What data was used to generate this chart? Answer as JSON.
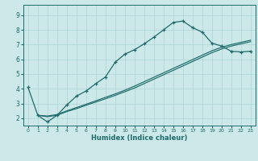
{
  "xlabel": "Humidex (Indice chaleur)",
  "bg_color": "#cce8e8",
  "line_color": "#1e6b6b",
  "grid_color": "#aad4d4",
  "xlim": [
    -0.5,
    23.5
  ],
  "ylim": [
    1.5,
    9.7
  ],
  "xticks": [
    0,
    1,
    2,
    3,
    4,
    5,
    6,
    7,
    8,
    9,
    10,
    11,
    12,
    13,
    14,
    15,
    16,
    17,
    18,
    19,
    20,
    21,
    22,
    23
  ],
  "yticks": [
    2,
    3,
    4,
    5,
    6,
    7,
    8,
    9
  ],
  "curve_x": [
    0,
    1,
    2,
    3,
    4,
    5,
    6,
    7,
    8,
    9,
    10,
    11,
    12,
    13,
    14,
    15,
    16,
    17,
    18,
    19,
    20,
    21,
    22,
    23
  ],
  "curve_y": [
    4.1,
    2.2,
    1.75,
    2.2,
    2.9,
    3.5,
    3.85,
    4.35,
    4.8,
    5.8,
    6.35,
    6.65,
    7.05,
    7.5,
    8.0,
    8.5,
    8.6,
    8.15,
    7.85,
    7.1,
    6.9,
    6.55,
    6.5,
    6.55
  ],
  "line_a_x": [
    1,
    2,
    3,
    4,
    5,
    6,
    7,
    8,
    9,
    10,
    11,
    12,
    13,
    14,
    15,
    16,
    17,
    18,
    19,
    20,
    21,
    22,
    23
  ],
  "line_a_y": [
    2.2,
    2.1,
    2.2,
    2.45,
    2.65,
    2.88,
    3.1,
    3.32,
    3.55,
    3.8,
    4.05,
    4.35,
    4.65,
    4.95,
    5.25,
    5.55,
    5.85,
    6.15,
    6.45,
    6.7,
    6.9,
    7.05,
    7.2
  ],
  "line_b_x": [
    1,
    2,
    3,
    4,
    5,
    6,
    7,
    8,
    9,
    10,
    11,
    12,
    13,
    14,
    15,
    16,
    17,
    18,
    19,
    20,
    21,
    22,
    23
  ],
  "line_b_y": [
    2.2,
    2.15,
    2.25,
    2.5,
    2.72,
    2.95,
    3.18,
    3.42,
    3.65,
    3.9,
    4.18,
    4.48,
    4.78,
    5.08,
    5.38,
    5.68,
    5.98,
    6.28,
    6.58,
    6.82,
    7.0,
    7.15,
    7.3
  ]
}
